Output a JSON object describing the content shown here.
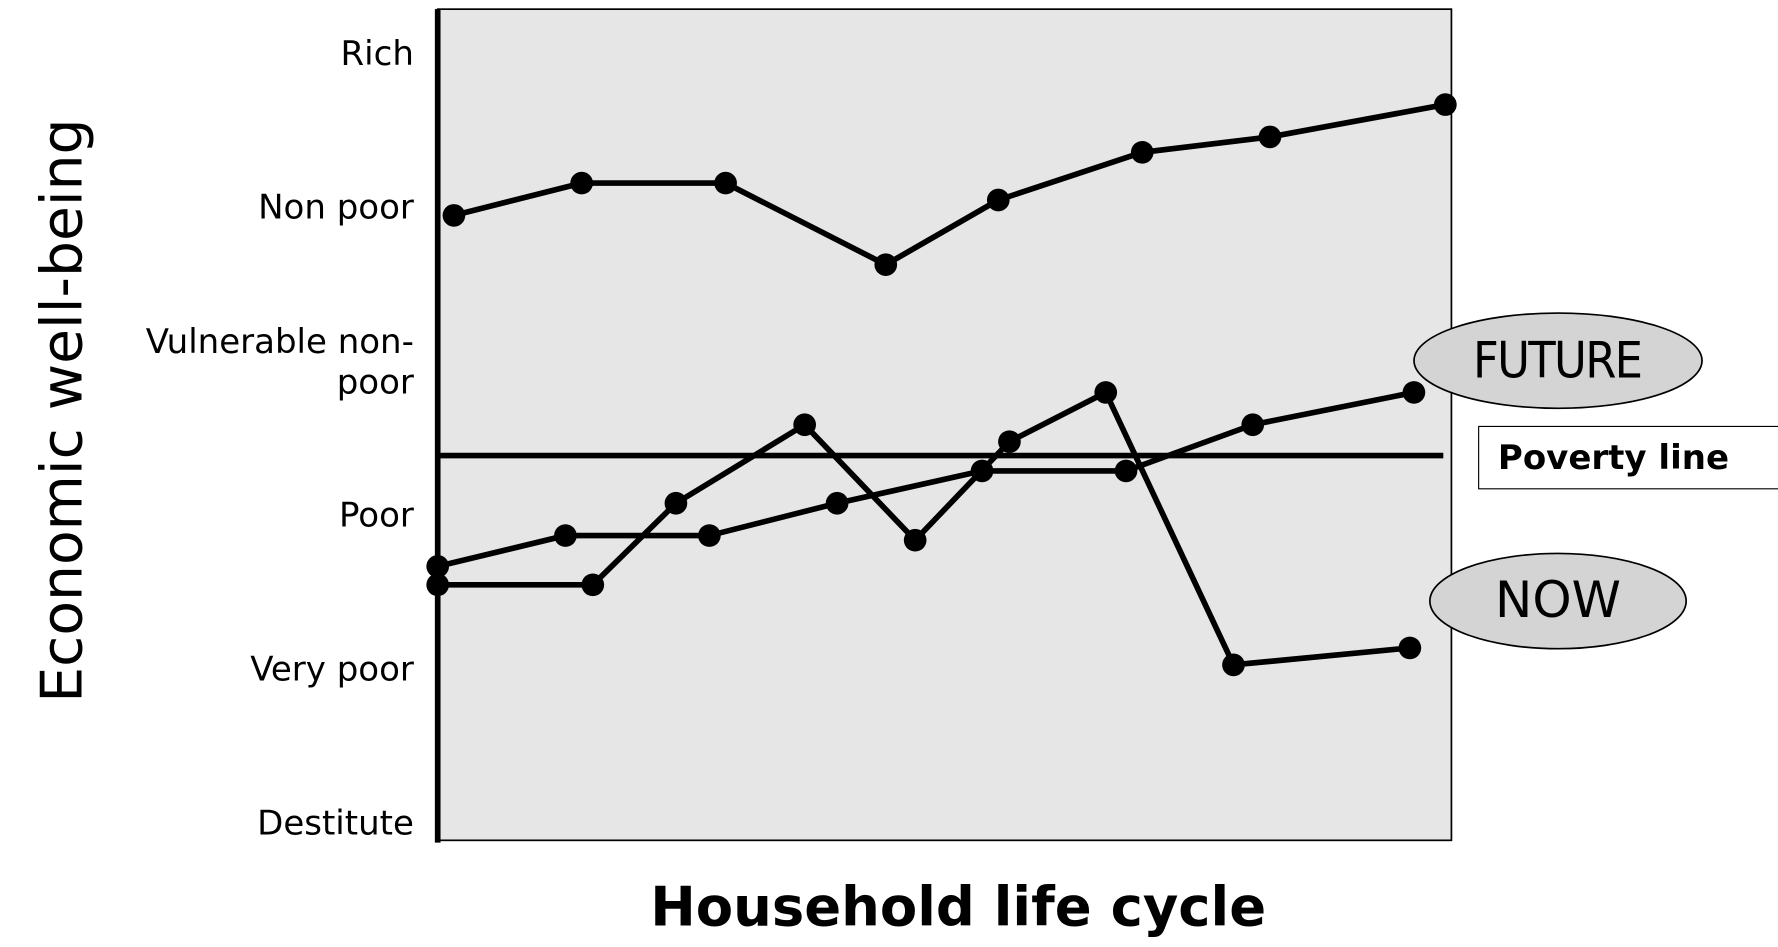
{
  "chart_data": {
    "type": "line",
    "ylabel": "Economic well-being",
    "xlabel": "Household life cycle",
    "xlim": [
      0,
      100
    ],
    "ylim": [
      -0.1,
      5.3
    ],
    "yticks": [
      {
        "value": 0,
        "label": "Destitute"
      },
      {
        "value": 1,
        "label": "Very poor"
      },
      {
        "value": 2,
        "label": "Poor"
      },
      {
        "value": 3,
        "label": "Vulnerable non-\npoor"
      },
      {
        "value": 4,
        "label": "Non poor"
      },
      {
        "value": 5,
        "label": "Rich"
      }
    ],
    "series": [
      {
        "color": "#000000",
        "x": [
          1.6,
          14.2,
          28.4,
          44.2,
          55.3,
          69.5,
          82.1,
          99.4
        ],
        "values": [
          3.96,
          4.17,
          4.17,
          3.64,
          4.06,
          4.37,
          4.47,
          4.68
        ]
      },
      {
        "color": "#000000",
        "x": [
          0,
          12.6,
          26.8,
          39.4,
          53.7,
          67.9,
          80.4,
          96.3
        ],
        "values": [
          1.68,
          1.88,
          1.88,
          2.09,
          2.3,
          2.3,
          2.6,
          2.81
        ]
      },
      {
        "color": "#000000",
        "x": [
          0,
          15.3,
          23.5,
          36.2,
          47.1,
          56.4,
          65.9,
          78.5,
          95.9
        ],
        "values": [
          1.56,
          1.56,
          2.09,
          2.6,
          1.85,
          2.49,
          2.81,
          1.04,
          1.15
        ]
      }
    ],
    "poverty_line": {
      "label": "Poverty line",
      "value": 2.4,
      "x": [
        0,
        99.2
      ]
    },
    "annotations": [
      "FUTURE",
      "NOW"
    ],
    "plot_background": "#e6e6e6"
  }
}
